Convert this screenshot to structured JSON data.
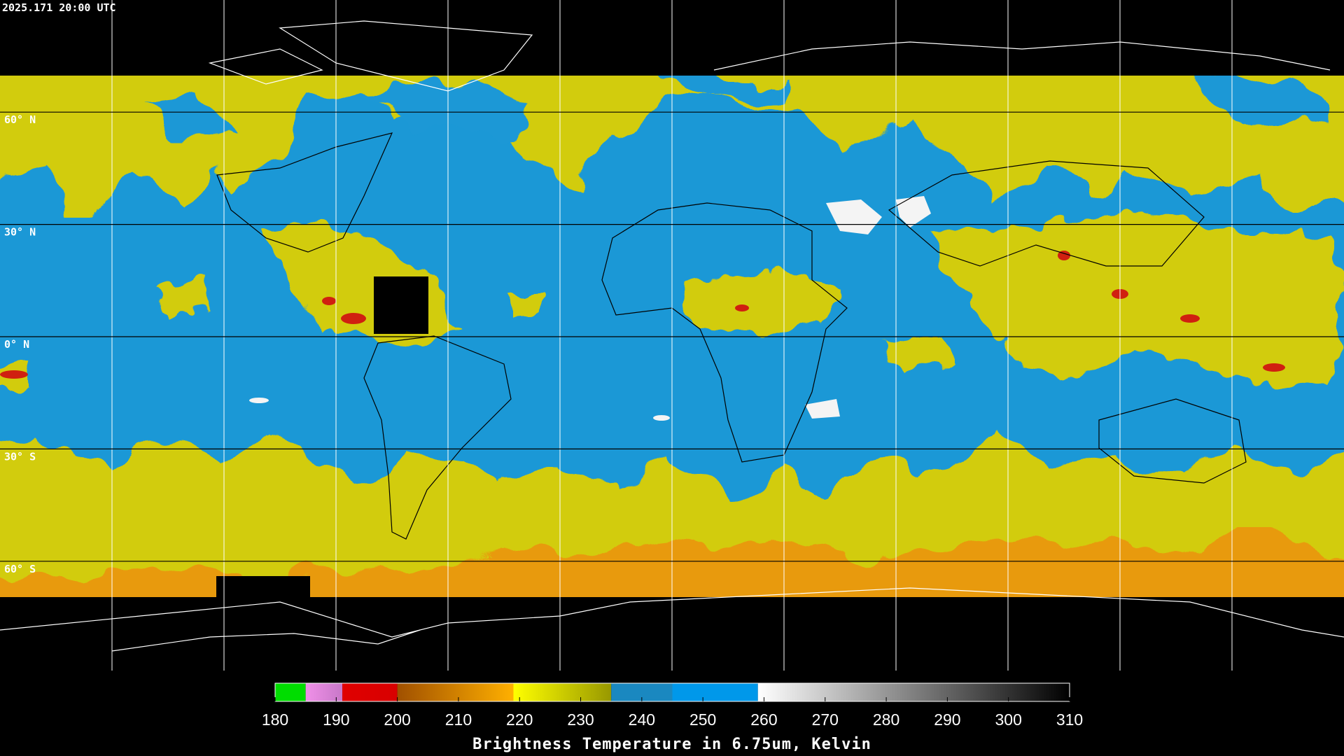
{
  "timestamp": "2025.171 20:00 UTC",
  "map": {
    "lat_lines": [
      {
        "value": 60,
        "label": "60° N"
      },
      {
        "value": 30,
        "label": "30° N"
      },
      {
        "value": 0,
        "label": "0° N"
      },
      {
        "value": -30,
        "label": "30° S"
      },
      {
        "value": -60,
        "label": "60° S"
      }
    ]
  },
  "colorbar": {
    "title": "Brightness Temperature in 6.75um, Kelvin",
    "range": [
      180,
      310
    ],
    "ticks": [
      180,
      190,
      200,
      210,
      220,
      230,
      240,
      250,
      260,
      270,
      280,
      290,
      300,
      310
    ],
    "segments": [
      {
        "from": 180,
        "to": 185,
        "colors": [
          "#00dd00",
          "#00dd00"
        ]
      },
      {
        "from": 185,
        "to": 191,
        "colors": [
          "#f090e8",
          "#c878c8"
        ]
      },
      {
        "from": 191,
        "to": 200,
        "colors": [
          "#e00000",
          "#d80000"
        ]
      },
      {
        "from": 200,
        "to": 219,
        "colors": [
          "#a05000",
          "#ffb000"
        ]
      },
      {
        "from": 219,
        "to": 235,
        "colors": [
          "#ffff00",
          "#989800"
        ]
      },
      {
        "from": 235,
        "to": 245,
        "colors": [
          "#1a88c0",
          "#1a88c0"
        ]
      },
      {
        "from": 245,
        "to": 259,
        "colors": [
          "#0098ea",
          "#0098ea"
        ]
      },
      {
        "from": 259,
        "to": 310,
        "colors": [
          "#ffffff",
          "#000000"
        ]
      }
    ]
  }
}
